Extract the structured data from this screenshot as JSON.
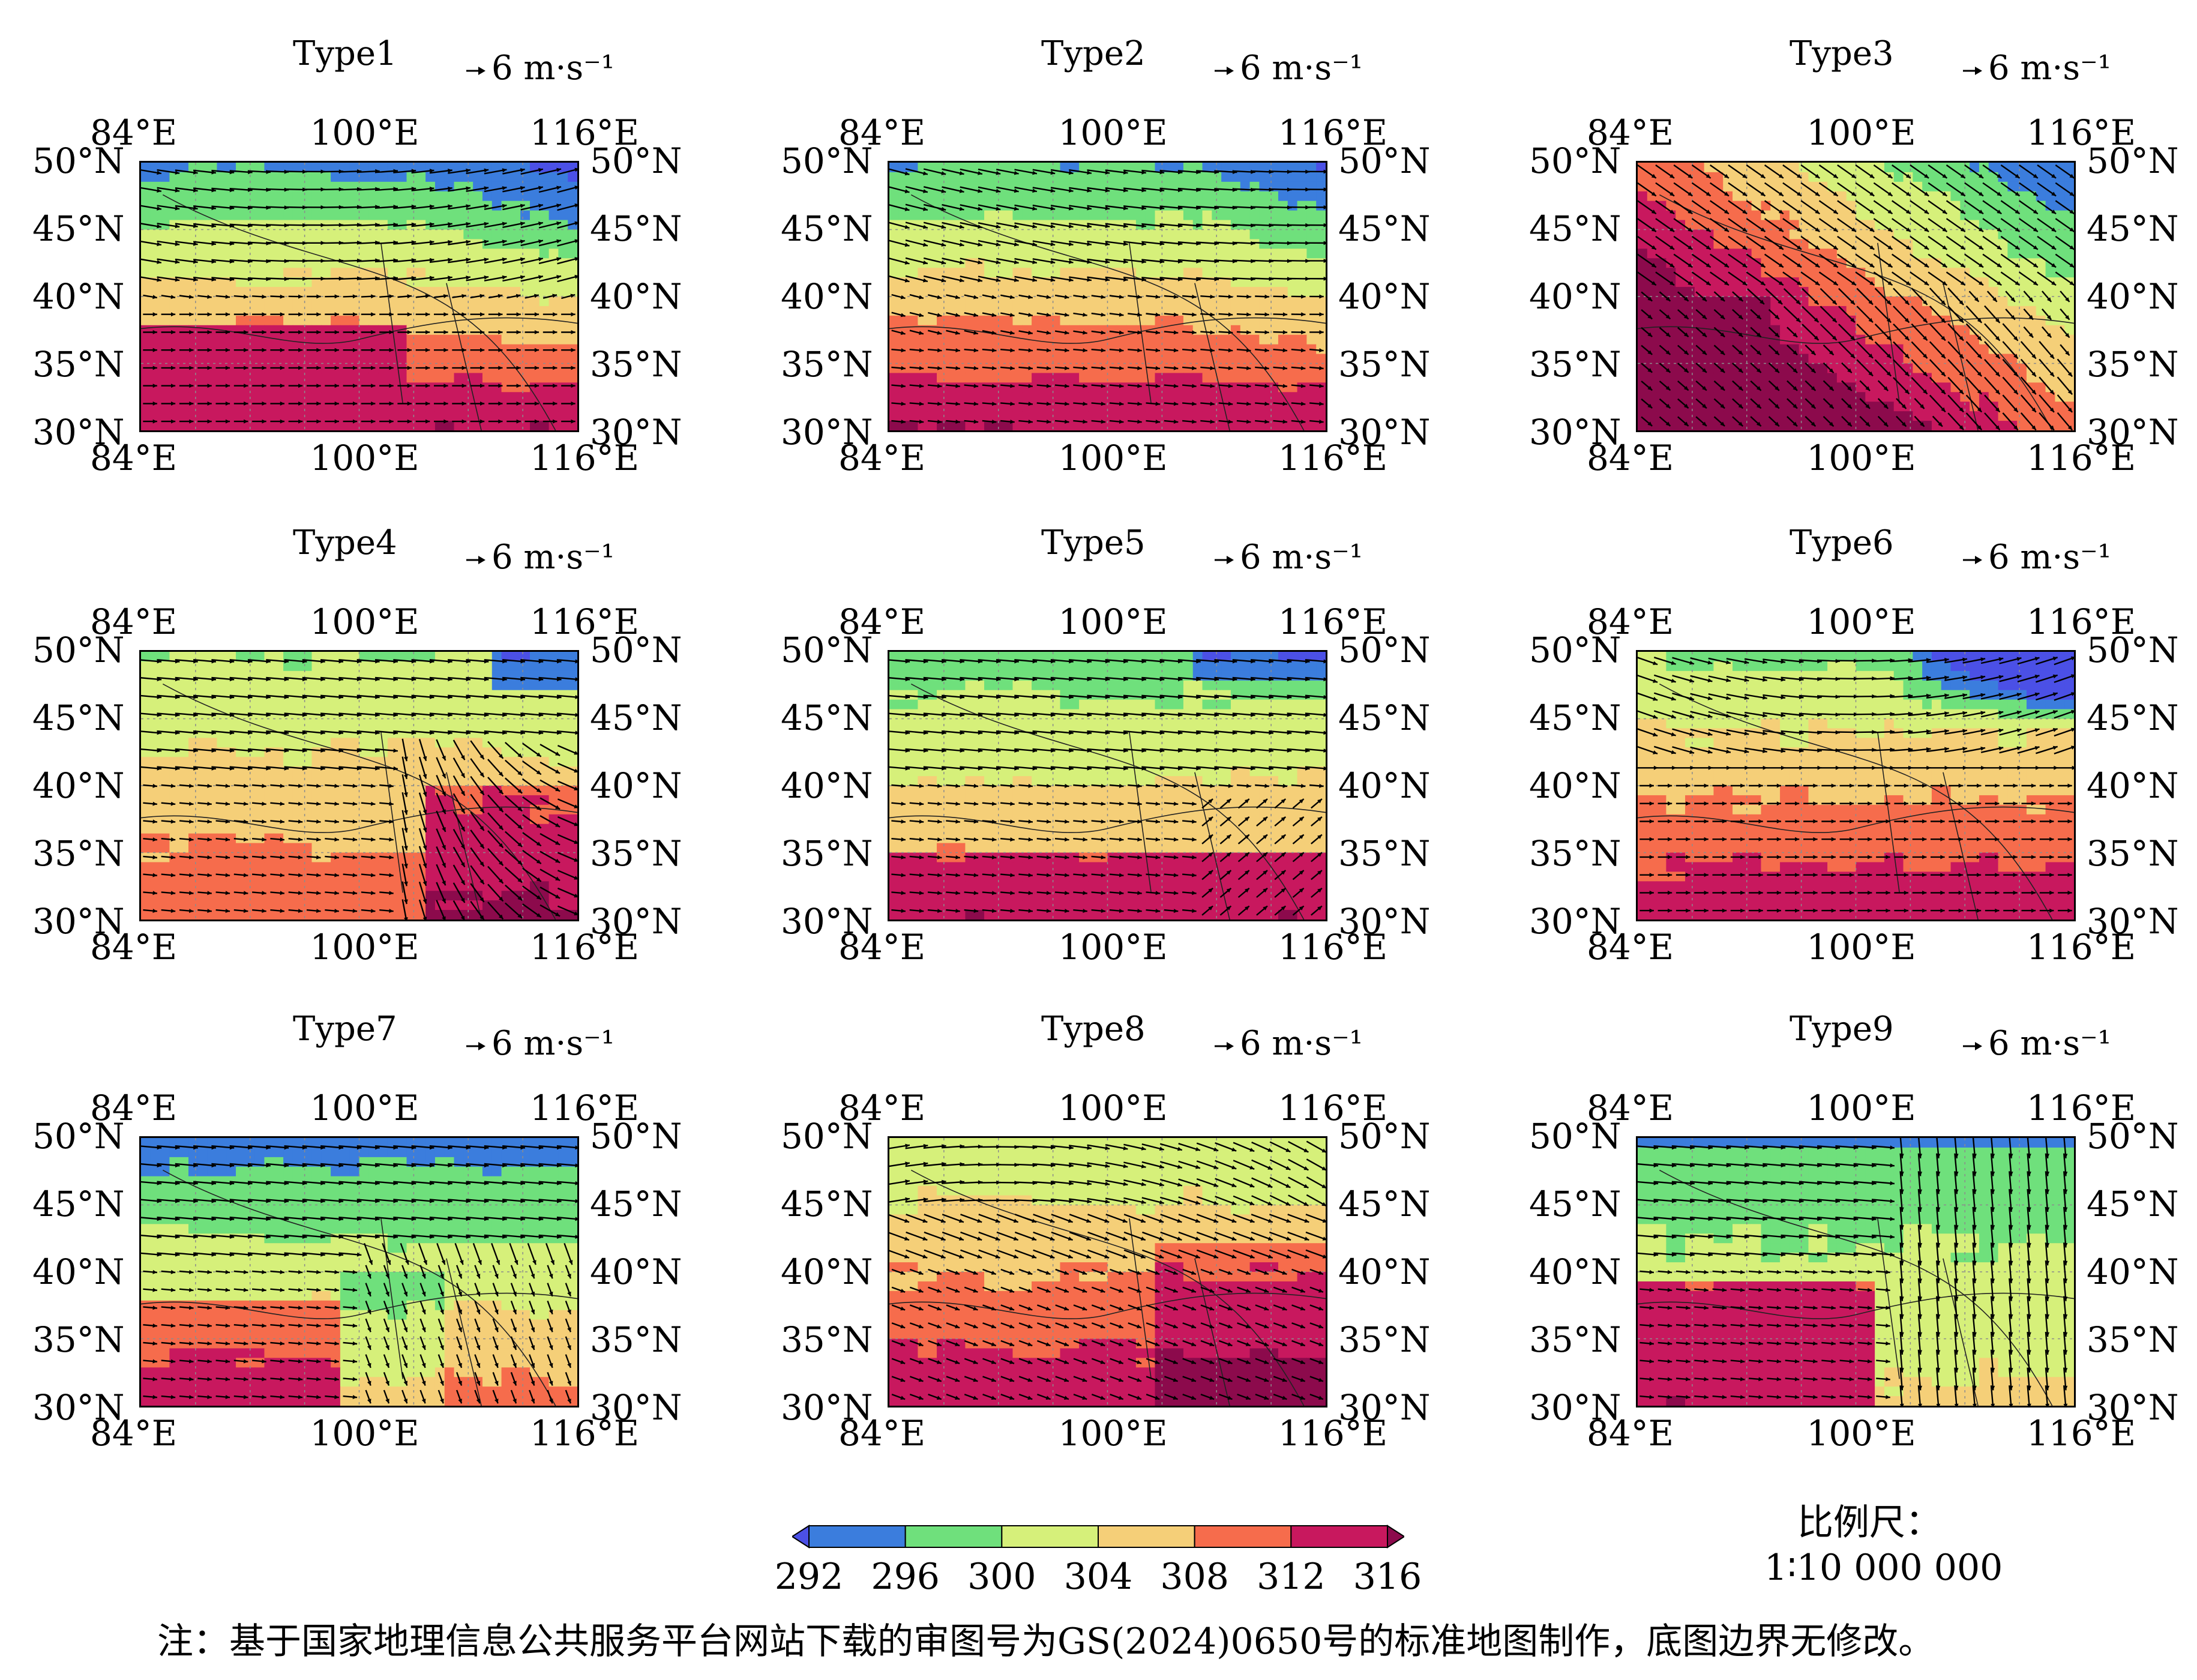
{
  "panels": [
    {
      "title": "Type1"
    },
    {
      "title": "Type2"
    },
    {
      "title": "Type3"
    },
    {
      "title": "Type4"
    },
    {
      "title": "Type5"
    },
    {
      "title": "Type6"
    },
    {
      "title": "Type7"
    },
    {
      "title": "Type8"
    },
    {
      "title": "Type9"
    }
  ],
  "reference_vector": "6 m·s⁻¹",
  "axes": {
    "lon_ticks": [
      "84°E",
      "100°E",
      "116°E"
    ],
    "lat_ticks_left": [
      "50°N",
      "45°N",
      "40°N",
      "35°N",
      "30°N"
    ],
    "lat_ticks_right": [
      "50°N",
      "45°N",
      "40°N",
      "35°N",
      "30°N"
    ],
    "lon_range": [
      84,
      116
    ],
    "lat_range": [
      30,
      50
    ]
  },
  "colorbar": {
    "levels": [
      "292",
      "296",
      "300",
      "304",
      "308",
      "312",
      "316"
    ],
    "colors": [
      "#3b7ddd",
      "#6fe07c",
      "#d6f07a",
      "#f5cf78",
      "#f66c4c",
      "#c8185e"
    ],
    "under_color": "#4b50e6",
    "over_color": "#8c0a4c"
  },
  "scale": {
    "title": "比例尺：",
    "value": "1∶10 000 000"
  },
  "footnote": "注：基于国家地理信息公共服务平台网站下载的审图号为GS(2024)0650号的标准地图制作，底图边界无修改。"
}
